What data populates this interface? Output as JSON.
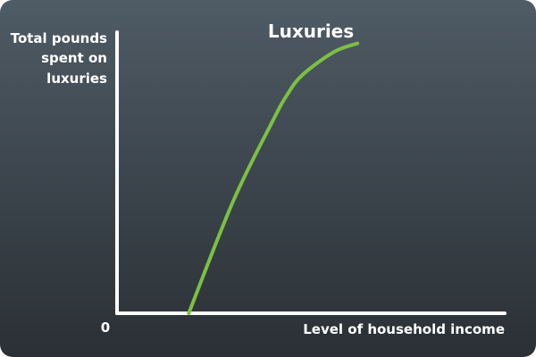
{
  "chart_data": {
    "type": "line",
    "title": "Luxuries",
    "xlabel": "Level of household income",
    "ylabel": [
      "Total pounds",
      "spent on",
      "luxuries"
    ],
    "origin_label": "0",
    "xlim": [
      0,
      100
    ],
    "ylim": [
      0,
      100
    ],
    "grid": false,
    "line_color": "#7cc043",
    "axis_color": "#ffffff",
    "series": [
      {
        "x": [
          18.5,
          30,
          40,
          44,
          48,
          56,
          62
        ],
        "y": [
          0,
          40,
          68,
          78,
          85,
          93,
          96
        ]
      }
    ]
  }
}
